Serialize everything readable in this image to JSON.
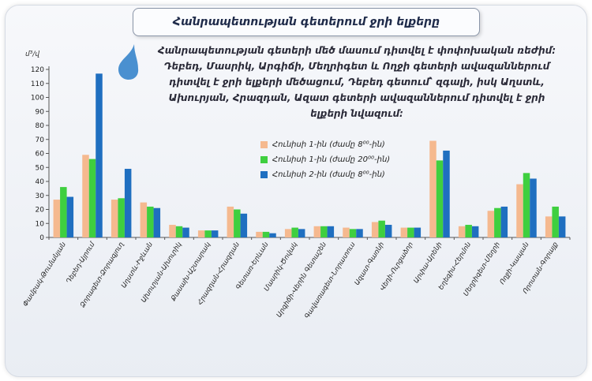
{
  "title": "Հանրապետության գետերում ջրի ելքերը",
  "annotation": "Հանրապետության գետերի մեծ մասում դիտվել է փոփոխական ռեժիմ: Դեբեդ, Մասրիկ, Արգիճի, Մեղրիգետ և Ողջի գետերի ավազաններում դիտվել է ջրի ելքերի մեծացում, Դեբեդ գետում՝ զգալի, իսկ Աղստև, Ախուրյան, Հրազդան, Ազատ գետերի ավազաններում դիտվել է ջրի ելքերի նվազում:",
  "colors": {
    "series1": "#f5b98f",
    "series2": "#3fcf3f",
    "series3": "#1f6fc0",
    "drop": "#4a90d0"
  },
  "icon": "water-drop-icon",
  "chart_data": {
    "type": "bar",
    "ylabel": "մ³/վ",
    "ylim": [
      0,
      120
    ],
    "yticks": [
      0,
      10,
      20,
      30,
      40,
      50,
      60,
      70,
      80,
      90,
      100,
      110,
      120
    ],
    "grid": false,
    "legend_position": "top-center",
    "categories": [
      "Փամբակ-Թումանյան",
      "Դեբեդ-Այրում",
      "Ձորագետ-Ձորագյուղ",
      "Աղստև-Իջևան",
      "Ախուրյան-Ախուրիկ",
      "Քասախ-Աշտարակ",
      "Հրազդան-Հրազդան",
      "Գետառ-Երևան",
      "Մասրիկ-Ծովակ",
      "Արգիճի-Վերին Գետաշեն",
      "Գավառագետ-Նորատուս",
      "Ազատ-Գառնի",
      "Վեդի-Ուրցաձոր",
      "Արփա-Արենի",
      "Եղեգիս-Հերմոն",
      "Մեղրիգետ-Մեղրի",
      "Ողջի-Կապան",
      "Որոտան-Գորայք"
    ],
    "series": [
      {
        "name": "Հունիսի 1-ին (ժամը 8⁰⁰-ին)",
        "values": [
          27,
          59,
          27,
          25,
          9,
          5,
          22,
          4,
          6,
          8,
          7,
          11,
          7,
          69,
          8,
          19,
          38,
          15
        ]
      },
      {
        "name": "Հունիսի 1-ին (ժամը 20⁰⁰-ին)",
        "values": [
          36,
          56,
          28,
          22,
          8,
          5,
          20,
          4,
          7,
          8,
          6,
          12,
          7,
          55,
          9,
          21,
          46,
          22
        ]
      },
      {
        "name": "Հունիսի 2-ին (ժամը 8⁰⁰-ին)",
        "values": [
          29,
          117,
          49,
          21,
          7,
          5,
          17,
          3,
          6,
          8,
          6,
          9,
          7,
          62,
          8,
          22,
          42,
          15
        ]
      }
    ]
  }
}
